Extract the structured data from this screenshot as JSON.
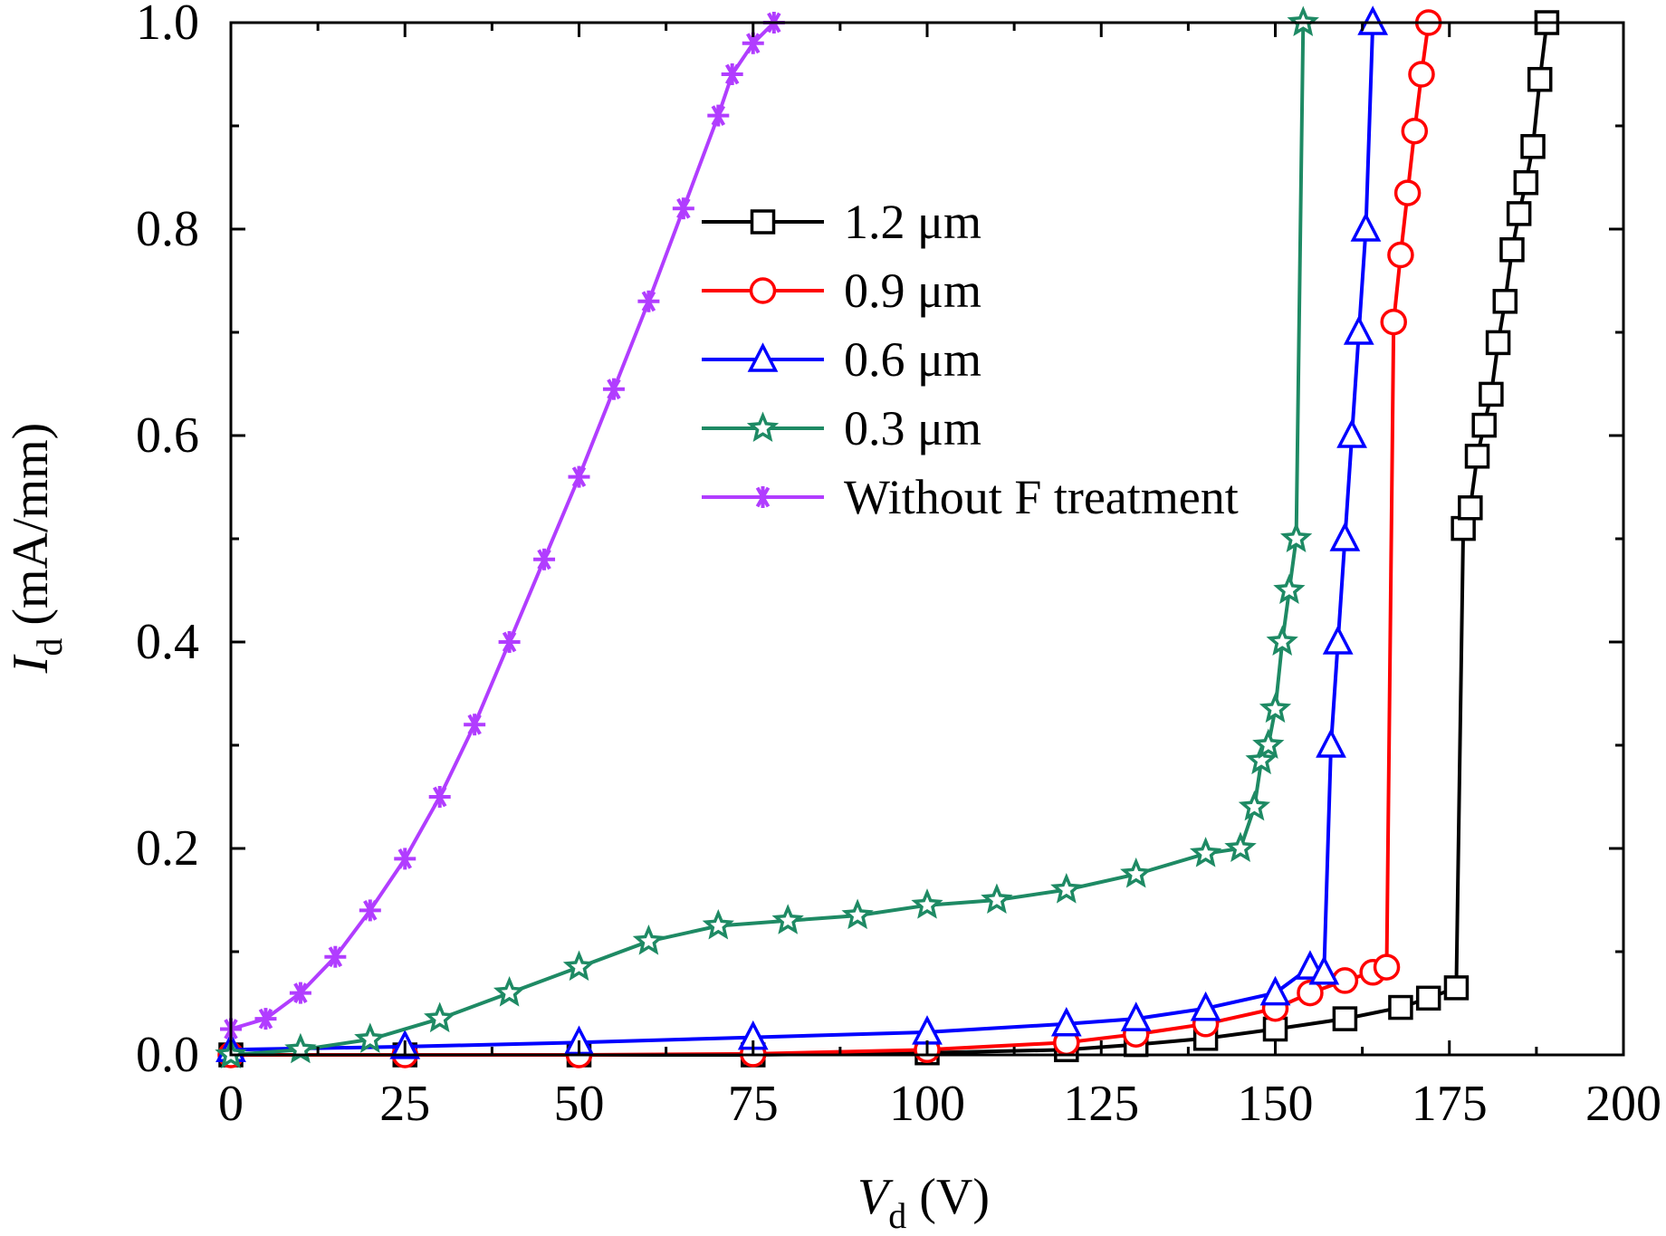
{
  "chart_data": {
    "type": "line",
    "xlabel": {
      "symbol": "V",
      "sub": "d",
      "unit": " (V)"
    },
    "ylabel": {
      "symbol": "I",
      "sub": "d",
      "unit": " (mA/mm)"
    },
    "xlim": [
      0,
      200
    ],
    "ylim": [
      0,
      1.0
    ],
    "xticks": [
      "0",
      "25",
      "50",
      "75",
      "100",
      "125",
      "150",
      "175",
      "200"
    ],
    "yticks": [
      "0.0",
      "0.2",
      "0.4",
      "0.6",
      "0.8",
      "1.0"
    ],
    "grid": false,
    "legend_position": "upper-center",
    "series": [
      {
        "name": "1.2 μm",
        "color": "#000000",
        "marker": "square",
        "points": [
          [
            0,
            0
          ],
          [
            25,
            0
          ],
          [
            50,
            0
          ],
          [
            75,
            0
          ],
          [
            100,
            0.002
          ],
          [
            120,
            0.005
          ],
          [
            130,
            0.01
          ],
          [
            140,
            0.016
          ],
          [
            150,
            0.025
          ],
          [
            160,
            0.035
          ],
          [
            168,
            0.046
          ],
          [
            172,
            0.055
          ],
          [
            176,
            0.065
          ],
          [
            177,
            0.51
          ],
          [
            178,
            0.53
          ],
          [
            179,
            0.58
          ],
          [
            180,
            0.61
          ],
          [
            181,
            0.64
          ],
          [
            182,
            0.69
          ],
          [
            183,
            0.73
          ],
          [
            184,
            0.78
          ],
          [
            185,
            0.815
          ],
          [
            186,
            0.845
          ],
          [
            187,
            0.88
          ],
          [
            188,
            0.945
          ],
          [
            189,
            1.0
          ]
        ]
      },
      {
        "name": "0.9 μm",
        "color": "#ff0000",
        "marker": "circle",
        "points": [
          [
            0,
            0
          ],
          [
            25,
            0
          ],
          [
            50,
            0
          ],
          [
            75,
            0.001
          ],
          [
            100,
            0.005
          ],
          [
            120,
            0.012
          ],
          [
            130,
            0.02
          ],
          [
            140,
            0.03
          ],
          [
            150,
            0.045
          ],
          [
            155,
            0.06
          ],
          [
            160,
            0.072
          ],
          [
            164,
            0.08
          ],
          [
            166,
            0.085
          ],
          [
            167,
            0.71
          ],
          [
            168,
            0.775
          ],
          [
            169,
            0.835
          ],
          [
            170,
            0.895
          ],
          [
            171,
            0.95
          ],
          [
            172,
            1.0
          ]
        ]
      },
      {
        "name": "0.6 μm",
        "color": "#0000ff",
        "marker": "triangle",
        "points": [
          [
            0,
            0.005
          ],
          [
            25,
            0.008
          ],
          [
            50,
            0.012
          ],
          [
            75,
            0.017
          ],
          [
            100,
            0.022
          ],
          [
            120,
            0.03
          ],
          [
            130,
            0.035
          ],
          [
            140,
            0.045
          ],
          [
            150,
            0.06
          ],
          [
            155,
            0.085
          ],
          [
            157,
            0.08
          ],
          [
            158,
            0.3
          ],
          [
            159,
            0.4
          ],
          [
            160,
            0.5
          ],
          [
            161,
            0.6
          ],
          [
            162,
            0.7
          ],
          [
            163,
            0.8
          ],
          [
            164,
            1.0
          ]
        ]
      },
      {
        "name": "0.3 μm",
        "color": "#1e8a64",
        "marker": "star",
        "points": [
          [
            0,
            0
          ],
          [
            10,
            0.005
          ],
          [
            20,
            0.015
          ],
          [
            30,
            0.035
          ],
          [
            40,
            0.06
          ],
          [
            50,
            0.085
          ],
          [
            60,
            0.11
          ],
          [
            70,
            0.125
          ],
          [
            80,
            0.13
          ],
          [
            90,
            0.135
          ],
          [
            100,
            0.145
          ],
          [
            110,
            0.15
          ],
          [
            120,
            0.16
          ],
          [
            130,
            0.175
          ],
          [
            140,
            0.195
          ],
          [
            145,
            0.2
          ],
          [
            147,
            0.24
          ],
          [
            148,
            0.285
          ],
          [
            149,
            0.3
          ],
          [
            150,
            0.335
          ],
          [
            151,
            0.4
          ],
          [
            152,
            0.45
          ],
          [
            153,
            0.5
          ],
          [
            154,
            1.0
          ]
        ]
      },
      {
        "name": "Without F treatment",
        "color": "#b13dff",
        "marker": "asterisk",
        "points": [
          [
            0,
            0.025
          ],
          [
            5,
            0.035
          ],
          [
            10,
            0.06
          ],
          [
            15,
            0.095
          ],
          [
            20,
            0.14
          ],
          [
            25,
            0.19
          ],
          [
            30,
            0.25
          ],
          [
            35,
            0.32
          ],
          [
            40,
            0.4
          ],
          [
            45,
            0.48
          ],
          [
            50,
            0.56
          ],
          [
            55,
            0.645
          ],
          [
            60,
            0.73
          ],
          [
            65,
            0.82
          ],
          [
            70,
            0.91
          ],
          [
            72,
            0.95
          ],
          [
            75,
            0.98
          ],
          [
            78,
            1.0
          ]
        ]
      }
    ]
  }
}
